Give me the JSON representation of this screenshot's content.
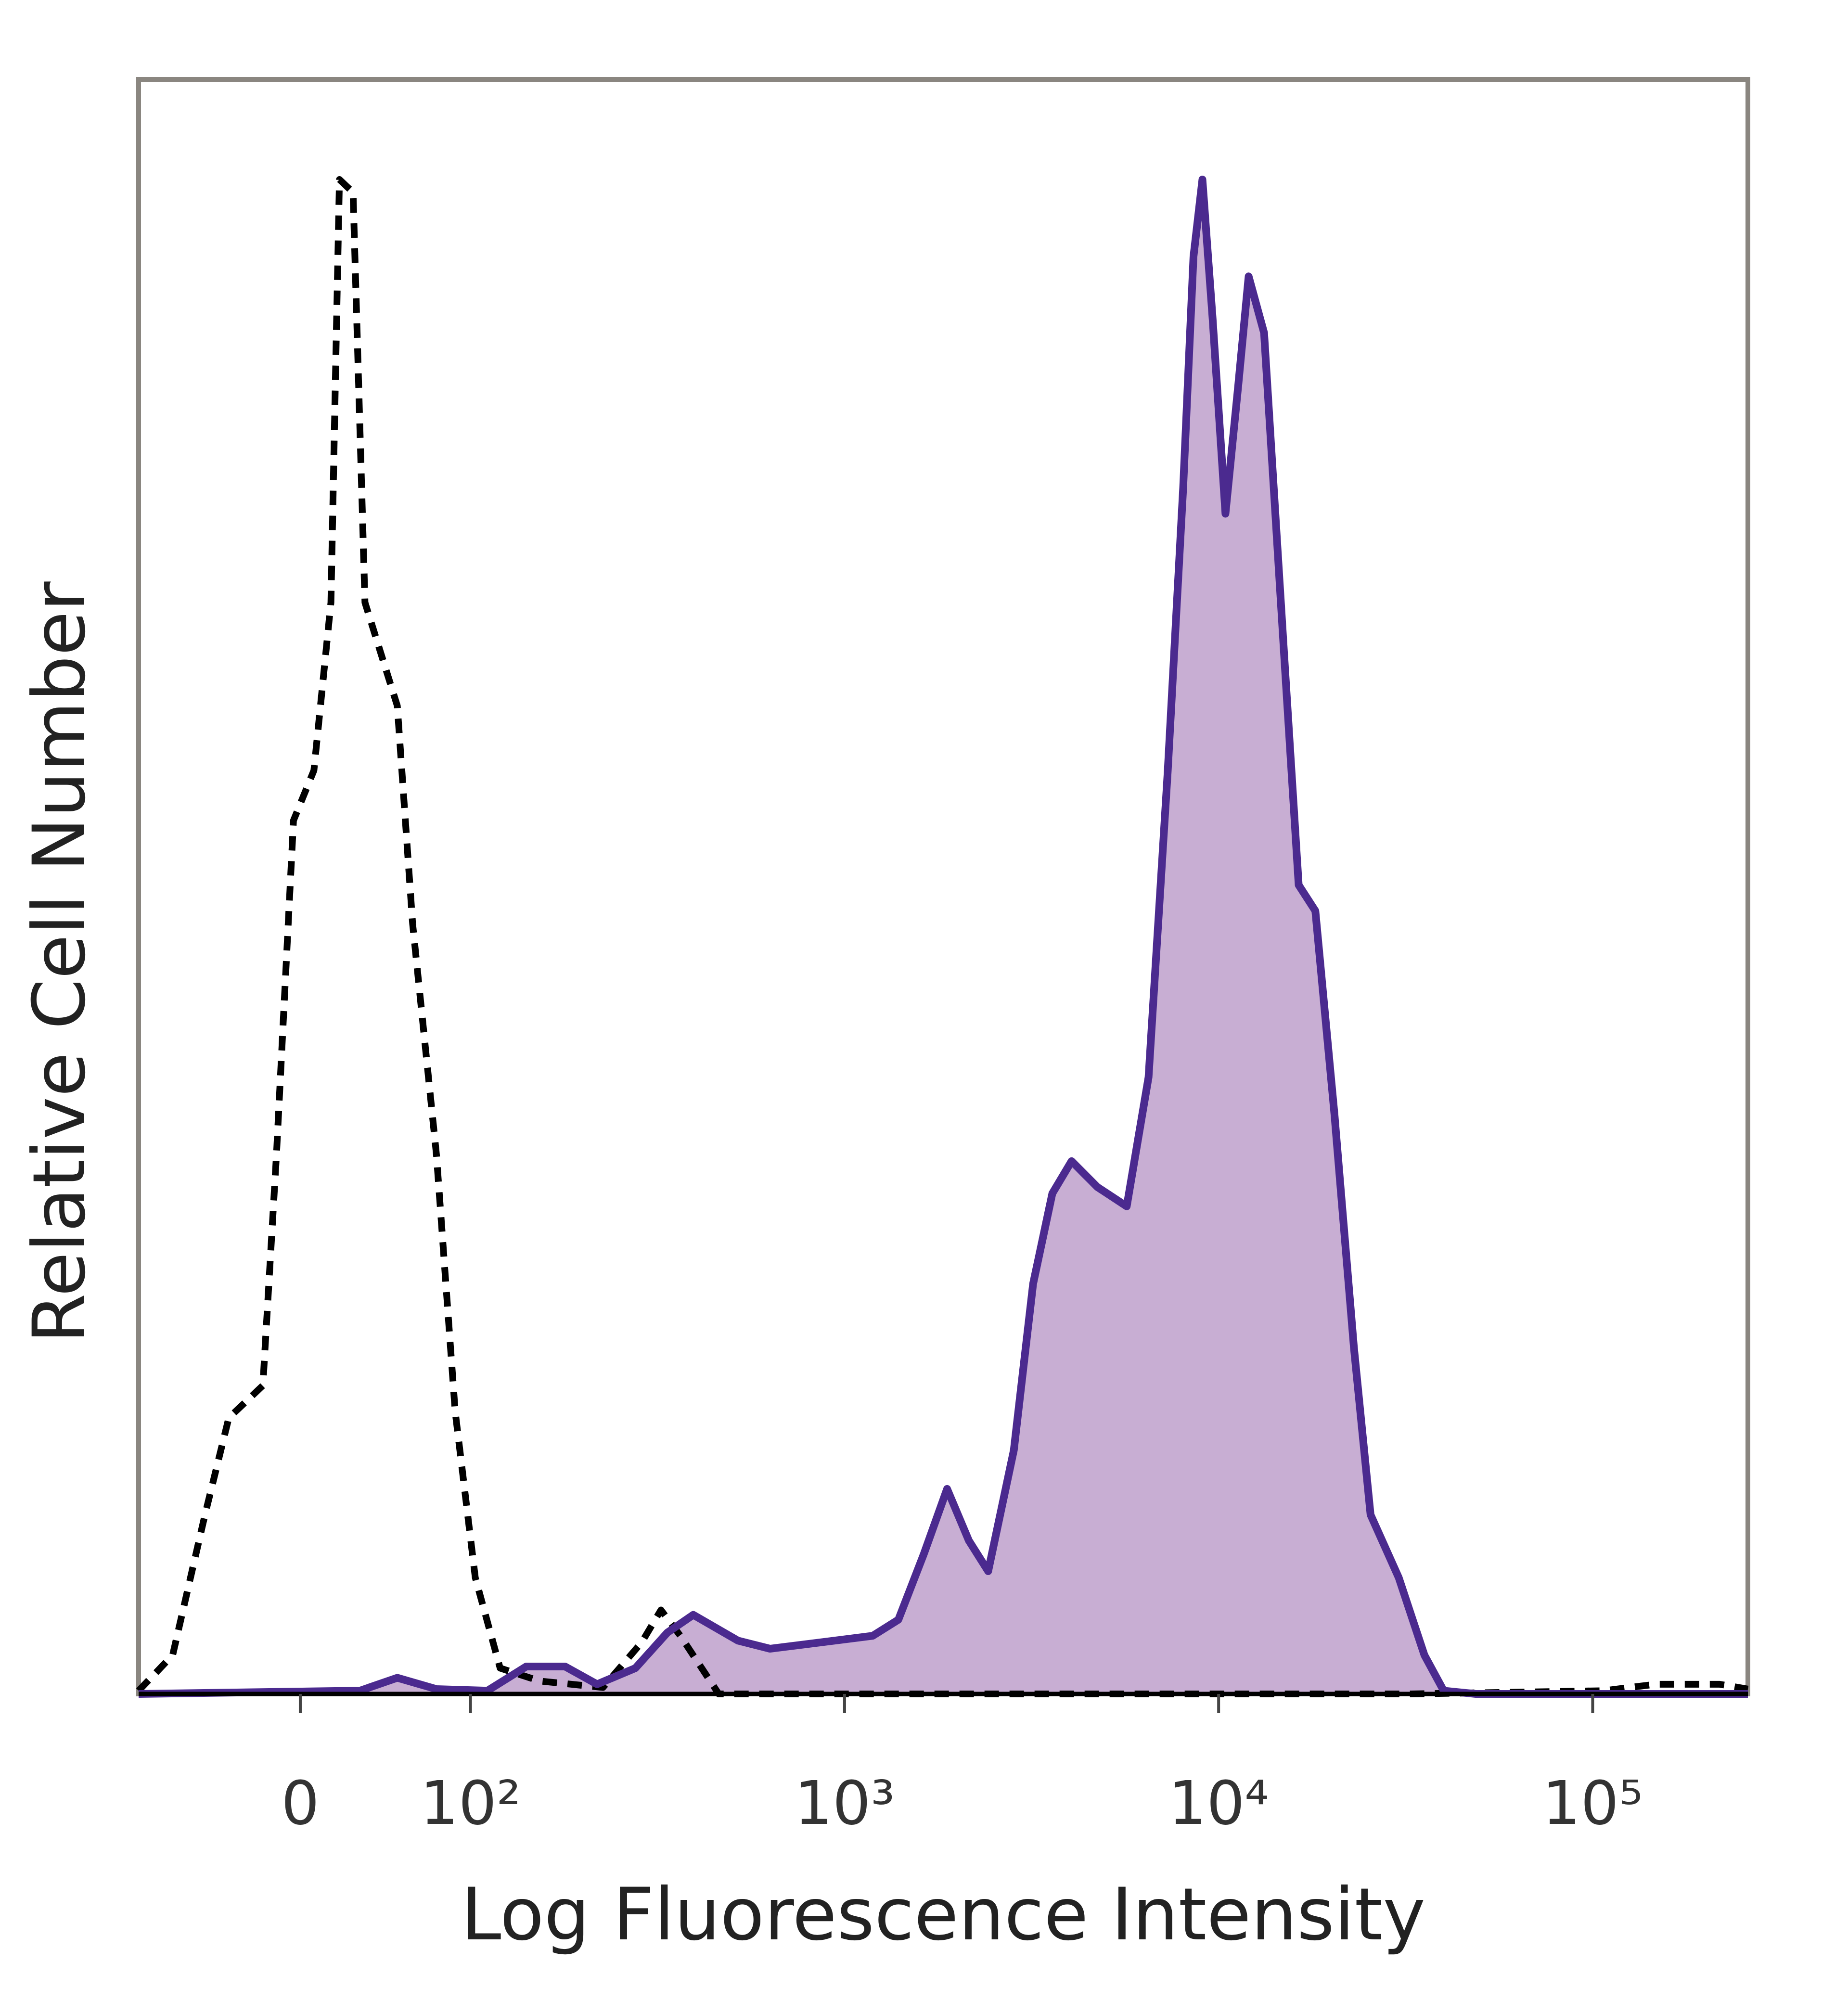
{
  "chart_data": {
    "type": "histogram-overlay",
    "x_label": "Log Fluorescence Intensity",
    "y_label": "Relative Cell Number",
    "xscale": "biexponential",
    "xlim": [
      -95,
      260000
    ],
    "xticks": [
      0,
      {
        "value": 100,
        "label": "10²"
      },
      {
        "value": 1000,
        "label": "10³"
      },
      {
        "value": 10000,
        "label": "10⁴"
      },
      {
        "value": 100000,
        "label": "10⁵"
      }
    ],
    "ylim": [
      0,
      100
    ],
    "series": [
      {
        "color": "#000000",
        "dashed": true,
        "filled": false,
        "x": [
          -95,
          -75,
          -56,
          -42,
          -22,
          -14,
          -4,
          8,
          18,
          23,
          31,
          38,
          57,
          66,
          80,
          91,
          103,
          120,
          153,
          226,
          287,
          323,
          364,
          461,
          1393,
          6760,
          32800,
          107300,
          147200,
          218400,
          260000
        ],
        "values": [
          0.2,
          2.4,
          11.1,
          17.1,
          19.1,
          33.4,
          54.1,
          57.2,
          67.6,
          93.8,
          93.0,
          67.6,
          61.2,
          47.7,
          33.4,
          17.5,
          7.2,
          1.6,
          0.8,
          0.4,
          3.2,
          5.2,
          3.6,
          0,
          0,
          0,
          0,
          0.2,
          0.6,
          0.6,
          0.3
        ]
      },
      {
        "color": "#4b2a8f",
        "fill": "#c8aed3",
        "dashed": false,
        "filled": true,
        "x": [
          -95,
          35,
          57,
          80,
          111,
          141,
          179,
          218,
          276,
          336,
          394,
          519,
          632,
          867,
          1189,
          1393,
          1631,
          1880,
          2149,
          2421,
          2835,
          3192,
          3593,
          4045,
          4738,
          5680,
          6497,
          7313,
          8039,
          8565,
          9051,
          9643,
          10430,
          11290,
          12030,
          13230,
          14890,
          16370,
          18140,
          20420,
          22990,
          25480,
          30310,
          35500,
          39970,
          48690,
          260000
        ],
        "values": [
          0,
          0.2,
          1.0,
          0.3,
          0.2,
          1.7,
          1.7,
          0.6,
          1.6,
          3.8,
          4.9,
          3.3,
          2.8,
          3.2,
          3.6,
          4.6,
          8.7,
          12.7,
          9.5,
          7.6,
          15.1,
          25.4,
          31.0,
          33.0,
          31.4,
          30.2,
          38.2,
          57.2,
          74.7,
          89.0,
          93.8,
          85.1,
          73.1,
          81.1,
          87.8,
          84.3,
          65.2,
          50.1,
          48.5,
          35.8,
          21.5,
          11.1,
          7.2,
          2.4,
          0.2,
          0,
          0
        ]
      }
    ]
  }
}
